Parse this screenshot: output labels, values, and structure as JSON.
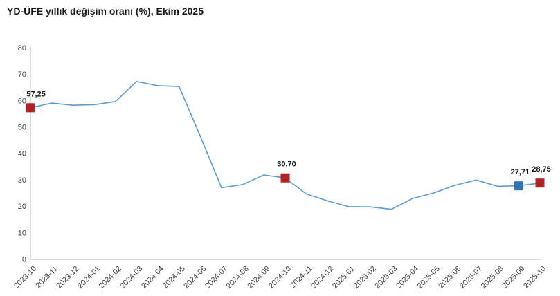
{
  "header": {
    "title": "YD-ÜFE yıllık değişim oranı (%), Ekim 2025"
  },
  "colors": {
    "line": "#5B9BD5",
    "marker_red": "#B22222",
    "marker_blue": "#2E75B6",
    "axis": "#D9D9D9",
    "tick_text": "#3f3f3f",
    "label_text": "#111111"
  },
  "chart_data": {
    "type": "line",
    "title": "YD-ÜFE yıllık değişim oranı (%), Ekim 2025",
    "xlabel": "",
    "ylabel": "",
    "ylim": [
      0,
      80
    ],
    "y_ticks": [
      0,
      10,
      20,
      30,
      40,
      50,
      60,
      70,
      80
    ],
    "grid": false,
    "legend_position": "none",
    "line_color": "#5B9BD5",
    "categories": [
      "2023-10",
      "2023-11",
      "2023-12",
      "2024-01",
      "2024-02",
      "2024-03",
      "2024-04",
      "2024-05",
      "2024-06",
      "2024-07",
      "2024-08",
      "2024-09",
      "2024-10",
      "2024-11",
      "2024-12",
      "2025-01",
      "2025-02",
      "2025-03",
      "2025-04",
      "2025-05",
      "2025-06",
      "2025-07",
      "2025-08",
      "2025-09",
      "2025-10"
    ],
    "values": [
      57.25,
      59.0,
      58.2,
      58.4,
      59.6,
      67.2,
      65.6,
      65.3,
      46.5,
      27.0,
      28.2,
      31.8,
      30.7,
      24.6,
      22.0,
      19.8,
      19.7,
      18.8,
      22.9,
      25.0,
      27.9,
      29.9,
      27.5,
      27.71,
      28.75
    ],
    "annotated_points": [
      {
        "category": "2023-10",
        "value": 57.25,
        "label": "57,25",
        "marker": "square",
        "marker_color": "#B22222"
      },
      {
        "category": "2024-10",
        "value": 30.7,
        "label": "30,70",
        "marker": "square",
        "marker_color": "#B22222"
      },
      {
        "category": "2025-09",
        "value": 27.71,
        "label": "27,71",
        "marker": "square",
        "marker_color": "#2E75B6"
      },
      {
        "category": "2025-10",
        "value": 28.75,
        "label": "28,75",
        "marker": "square",
        "marker_color": "#B22222"
      }
    ]
  }
}
